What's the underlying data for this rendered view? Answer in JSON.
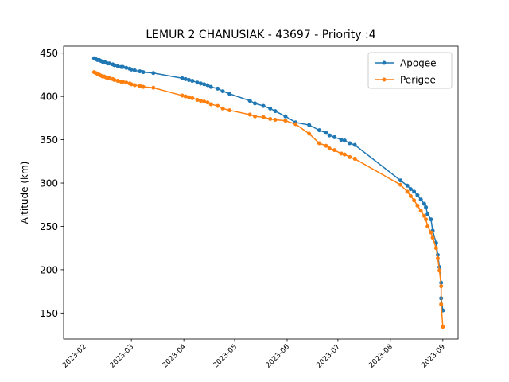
{
  "chart_data": {
    "type": "line",
    "title": "LEMUR 2 CHANUSIAK - 43697 - Priority :4",
    "xlabel": "",
    "ylabel": "Altitude (km)",
    "x_type": "date",
    "xlim": [
      "2023-01-20",
      "2023-09-10"
    ],
    "ylim": [
      120,
      458
    ],
    "x_ticks": [
      "2023-02",
      "2023-03",
      "2023-04",
      "2023-05",
      "2023-06",
      "2023-07",
      "2023-08",
      "2023-09"
    ],
    "y_ticks": [
      150,
      200,
      250,
      300,
      350,
      400,
      450
    ],
    "legend_position": "top-right",
    "grid": false,
    "series": [
      {
        "name": "Apogee",
        "color": "#1f77b4",
        "x": [
          "2023-02-07",
          "2023-02-08",
          "2023-02-09",
          "2023-02-10",
          "2023-02-11",
          "2023-02-12",
          "2023-02-13",
          "2023-02-14",
          "2023-02-15",
          "2023-02-16",
          "2023-02-18",
          "2023-02-19",
          "2023-02-21",
          "2023-02-23",
          "2023-02-24",
          "2023-02-26",
          "2023-02-28",
          "2023-03-01",
          "2023-03-03",
          "2023-03-06",
          "2023-03-08",
          "2023-03-14",
          "2023-03-31",
          "2023-04-02",
          "2023-04-04",
          "2023-04-06",
          "2023-04-09",
          "2023-04-11",
          "2023-04-13",
          "2023-04-15",
          "2023-04-17",
          "2023-04-21",
          "2023-04-24",
          "2023-04-28",
          "2023-05-10",
          "2023-05-13",
          "2023-05-18",
          "2023-05-22",
          "2023-05-25",
          "2023-05-31",
          "2023-06-06",
          "2023-06-14",
          "2023-06-20",
          "2023-06-24",
          "2023-06-26",
          "2023-06-29",
          "2023-07-03",
          "2023-07-05",
          "2023-07-08",
          "2023-07-11",
          "2023-08-07",
          "2023-08-11",
          "2023-08-13",
          "2023-08-15",
          "2023-08-17",
          "2023-08-19",
          "2023-08-21",
          "2023-08-22",
          "2023-08-23",
          "2023-08-25",
          "2023-08-26",
          "2023-08-28",
          "2023-08-29",
          "2023-08-30",
          "2023-08-31",
          "2023-08-31",
          "2023-09-01"
        ],
        "y": [
          444,
          443,
          442,
          442,
          441,
          440,
          440,
          439,
          438,
          438,
          437,
          436,
          435,
          434,
          434,
          433,
          432,
          431,
          430,
          429,
          428,
          427,
          421,
          420,
          419,
          418,
          416,
          415,
          414,
          413,
          411,
          409,
          406,
          403,
          395,
          392,
          389,
          386,
          383,
          377,
          370,
          367,
          361,
          358,
          355,
          353,
          350,
          349,
          346,
          344,
          303,
          297,
          293,
          290,
          286,
          281,
          276,
          272,
          264,
          258,
          245,
          231,
          217,
          203,
          185,
          167,
          153
        ]
      },
      {
        "name": "Perigee",
        "color": "#ff7f0e",
        "x": [
          "2023-02-07",
          "2023-02-08",
          "2023-02-09",
          "2023-02-10",
          "2023-02-11",
          "2023-02-12",
          "2023-02-13",
          "2023-02-14",
          "2023-02-15",
          "2023-02-16",
          "2023-02-18",
          "2023-02-19",
          "2023-02-21",
          "2023-02-23",
          "2023-02-24",
          "2023-02-26",
          "2023-02-28",
          "2023-03-01",
          "2023-03-03",
          "2023-03-06",
          "2023-03-08",
          "2023-03-14",
          "2023-03-31",
          "2023-04-02",
          "2023-04-04",
          "2023-04-06",
          "2023-04-09",
          "2023-04-11",
          "2023-04-13",
          "2023-04-15",
          "2023-04-17",
          "2023-04-21",
          "2023-04-24",
          "2023-04-28",
          "2023-05-10",
          "2023-05-13",
          "2023-05-18",
          "2023-05-22",
          "2023-05-25",
          "2023-05-31",
          "2023-06-06",
          "2023-06-14",
          "2023-06-20",
          "2023-06-24",
          "2023-06-26",
          "2023-06-29",
          "2023-07-03",
          "2023-07-05",
          "2023-07-08",
          "2023-07-11",
          "2023-08-07",
          "2023-08-11",
          "2023-08-13",
          "2023-08-15",
          "2023-08-17",
          "2023-08-19",
          "2023-08-21",
          "2023-08-22",
          "2023-08-23",
          "2023-08-25",
          "2023-08-26",
          "2023-08-28",
          "2023-08-29",
          "2023-08-30",
          "2023-08-31",
          "2023-08-31",
          "2023-09-01"
        ],
        "y": [
          428,
          427,
          426,
          425,
          424,
          423,
          423,
          422,
          421,
          421,
          420,
          419,
          418,
          417,
          417,
          416,
          415,
          414,
          413,
          412,
          411,
          410,
          401,
          400,
          399,
          398,
          396,
          395,
          394,
          393,
          391,
          389,
          386,
          384,
          379,
          377,
          376,
          374,
          373,
          372,
          368,
          357,
          346,
          343,
          340,
          338,
          334,
          333,
          330,
          328,
          298,
          290,
          285,
          280,
          274,
          268,
          262,
          258,
          250,
          243,
          237,
          225,
          213,
          199,
          181,
          160,
          134
        ]
      }
    ]
  }
}
